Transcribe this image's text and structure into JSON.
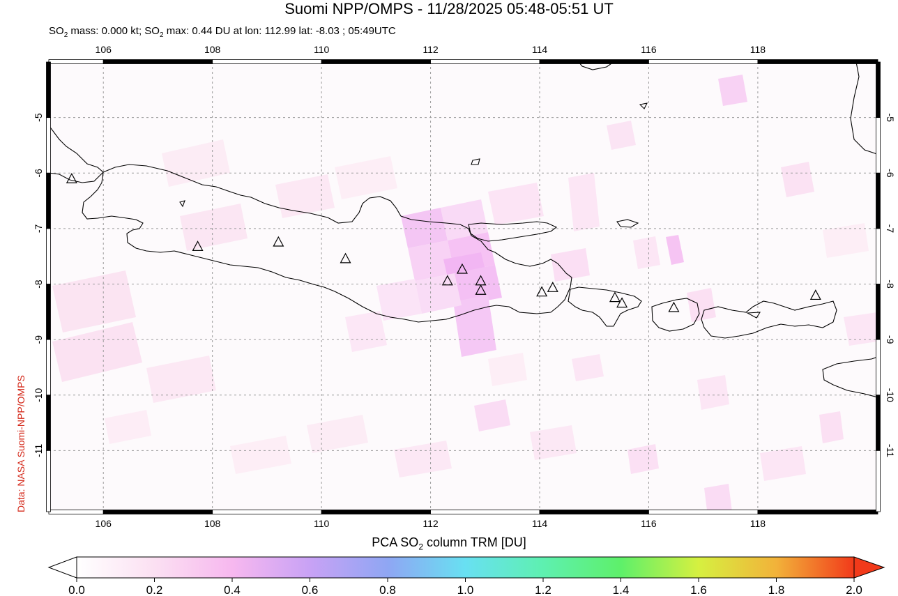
{
  "header": {
    "title": "Suomi NPP/OMPS - 11/28/2025 05:48-05:51 UT",
    "subtitle_parts": [
      "SO",
      "2",
      " mass: 0.000 kt; SO",
      "2",
      " max: 0.44 DU at lon: 112.99 lat: -8.03 ; 05:49UTC"
    ]
  },
  "credit": "Data: NASA Suomi-NPP/OMPS",
  "colorbar": {
    "title_parts": [
      "PCA SO",
      "2",
      " column TRM [DU]"
    ],
    "ticks": [
      "0.0",
      "0.2",
      "0.4",
      "0.6",
      "0.8",
      "1.0",
      "1.2",
      "1.4",
      "1.6",
      "1.8",
      "2.0"
    ],
    "colors": [
      "#ffffff",
      "#fbe0f2",
      "#f7b8ef",
      "#c8a2f5",
      "#8fa6f3",
      "#68e0f2",
      "#5ef0b0",
      "#5ef06a",
      "#d6f040",
      "#f2b23a",
      "#f23a1a"
    ]
  },
  "map": {
    "lon_range": [
      105.0,
      120.2
    ],
    "lat_range": [
      -12.1,
      -4.0
    ],
    "lon_ticks": [
      "106",
      "108",
      "110",
      "112",
      "114",
      "116",
      "118"
    ],
    "lat_ticks": [
      "-5",
      "-6",
      "-7",
      "-8",
      "-9",
      "-10",
      "-11"
    ],
    "volcanoes": [
      {
        "lon": 105.42,
        "lat": -6.1
      },
      {
        "lon": 107.73,
        "lat": -7.32
      },
      {
        "lon": 109.21,
        "lat": -7.24
      },
      {
        "lon": 110.44,
        "lat": -7.54
      },
      {
        "lon": 112.31,
        "lat": -7.94
      },
      {
        "lon": 112.58,
        "lat": -7.73
      },
      {
        "lon": 112.92,
        "lat": -7.94
      },
      {
        "lon": 112.92,
        "lat": -8.11
      },
      {
        "lon": 114.04,
        "lat": -8.14
      },
      {
        "lon": 114.24,
        "lat": -8.06
      },
      {
        "lon": 115.38,
        "lat": -8.24
      },
      {
        "lon": 115.51,
        "lat": -8.34
      },
      {
        "lon": 116.46,
        "lat": -8.42
      },
      {
        "lon": 119.06,
        "lat": -8.2
      }
    ]
  }
}
